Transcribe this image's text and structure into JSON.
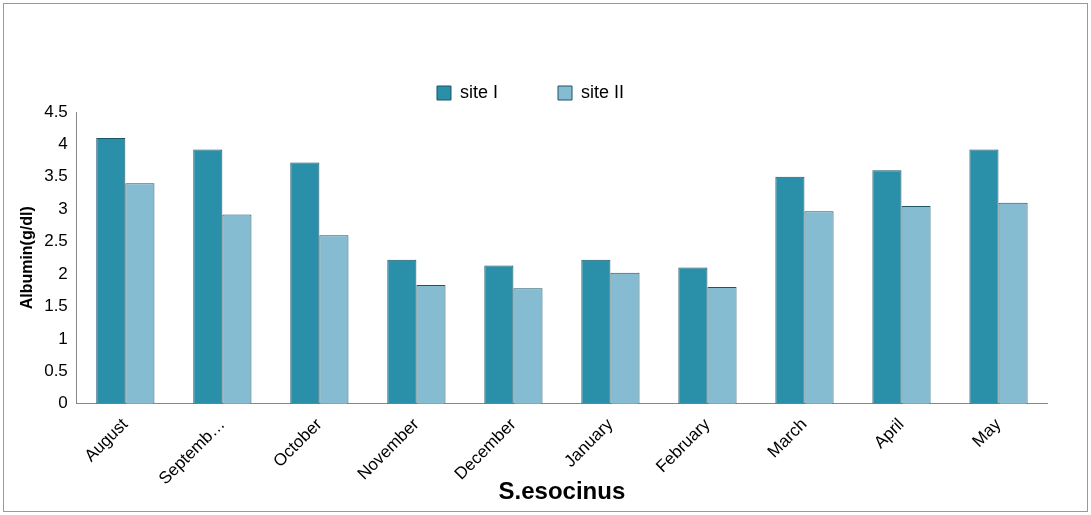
{
  "chart_data": {
    "type": "bar",
    "xlabel": "S.esocinus",
    "ylabel": "Albumin(g/dl)",
    "categories": [
      "August",
      "Septemb…",
      "October",
      "November",
      "December",
      "January",
      "February",
      "March",
      "April",
      "May"
    ],
    "series": [
      {
        "name": "site I",
        "color": "#2a8fa8",
        "values": [
          4.1,
          3.92,
          3.72,
          2.22,
          2.13,
          2.22,
          2.1,
          3.5,
          3.6,
          3.92
        ]
      },
      {
        "name": "site II",
        "color": "#86bcd2",
        "values": [
          3.4,
          2.92,
          2.6,
          1.83,
          1.78,
          2.02,
          1.8,
          2.97,
          3.05,
          3.1
        ]
      }
    ],
    "ylim": [
      0,
      4.5
    ],
    "yticks": [
      0,
      0.5,
      1,
      1.5,
      2,
      2.5,
      3,
      3.5,
      4,
      4.5
    ],
    "grid": false,
    "legend": "top"
  }
}
